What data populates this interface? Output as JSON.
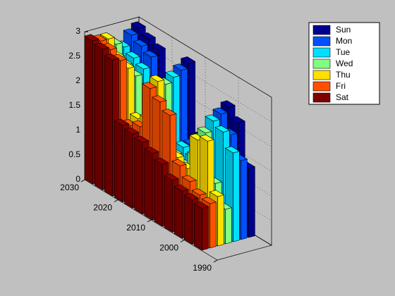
{
  "chart_data": {
    "type": "bar3",
    "categories": [
      1996,
      1999,
      2002,
      2005,
      2008,
      2011,
      2014,
      2017,
      2020,
      2023,
      2026,
      2029
    ],
    "series": [
      {
        "name": "Sun",
        "color": "#00008f",
        "values": [
          1.4,
          2.2,
          2.4,
          1.6,
          1.5,
          1.4,
          2.8,
          2.1,
          2.0,
          2.7,
          2.8,
          2.9
        ]
      },
      {
        "name": "Mon",
        "color": "#0050ff",
        "values": [
          1.6,
          2.0,
          2.3,
          1.5,
          1.4,
          1.3,
          2.7,
          2.0,
          1.9,
          2.6,
          2.7,
          2.8
        ]
      },
      {
        "name": "Tue",
        "color": "#00dfff",
        "values": [
          1.8,
          2.1,
          2.2,
          1.4,
          1.2,
          1.3,
          2.6,
          1.9,
          1.8,
          2.4,
          2.5,
          2.6
        ]
      },
      {
        "name": "Wed",
        "color": "#80ff80",
        "values": [
          0.7,
          1.1,
          2.0,
          1.4,
          1.1,
          1.2,
          2.5,
          1.8,
          1.5,
          2.3,
          2.4,
          2.7
        ]
      },
      {
        "name": "Thu",
        "color": "#ffdf00",
        "values": [
          1.0,
          2.0,
          1.9,
          1.2,
          1.3,
          1.1,
          2.6,
          1.7,
          1.6,
          2.5,
          2.6,
          2.85
        ]
      },
      {
        "name": "Fri",
        "color": "#ff5000",
        "values": [
          0.9,
          0.95,
          1.1,
          1.3,
          2.2,
          2.35,
          2.5,
          1.6,
          1.5,
          2.7,
          2.8,
          2.85
        ]
      },
      {
        "name": "Sat",
        "color": "#800000",
        "values": [
          0.85,
          0.9,
          0.95,
          1.05,
          1.25,
          1.35,
          1.45,
          1.5,
          1.55,
          2.75,
          2.85,
          2.9
        ]
      }
    ],
    "ylim": [
      1990,
      2030
    ],
    "yticks": [
      1990,
      2000,
      2010,
      2020,
      2030
    ],
    "zlim": [
      0,
      3
    ],
    "zticks": [
      0,
      0.5,
      1,
      1.5,
      2,
      2.5,
      3
    ],
    "grid": true,
    "legend": "top-right"
  }
}
